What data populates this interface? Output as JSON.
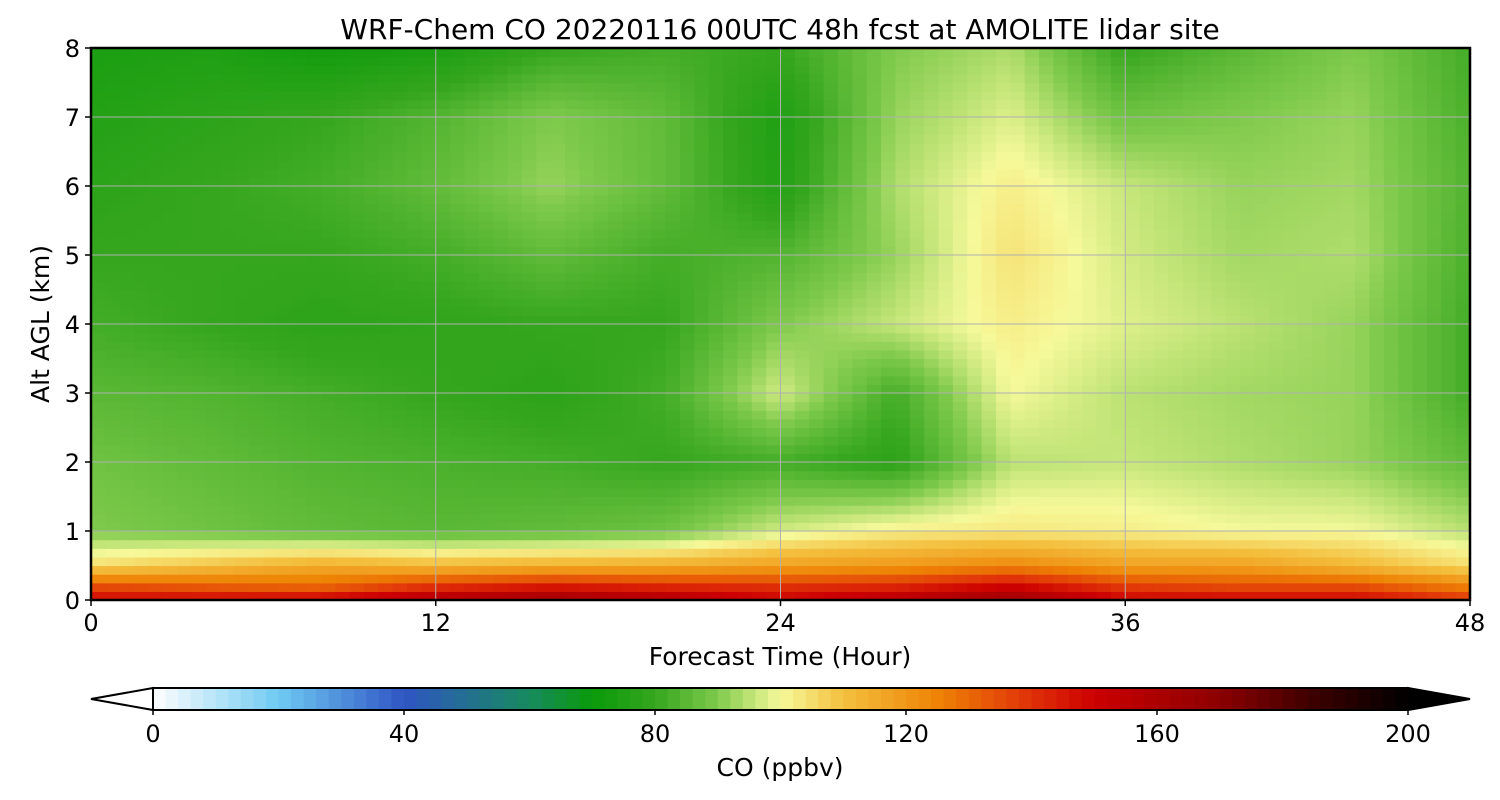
{
  "chart_data": {
    "type": "heatmap",
    "title": "WRF-Chem CO  20220116 00UTC 48h fcst at AMOLITE lidar site",
    "xlabel": "Forecast Time (Hour)",
    "ylabel": "Alt AGL (km)",
    "xlim": [
      0,
      48
    ],
    "ylim": [
      0,
      8
    ],
    "xticks": [
      0,
      12,
      24,
      36,
      48
    ],
    "yticks": [
      0,
      1,
      2,
      3,
      4,
      5,
      6,
      7,
      8
    ],
    "grid": true,
    "colorbar": {
      "label": "CO  (ppbv)",
      "range": [
        0,
        200
      ],
      "ticks": [
        0,
        40,
        80,
        120,
        160,
        200
      ],
      "extend": "both",
      "orientation": "horizontal",
      "placement": "bottom",
      "colors": {
        "0": "#ffffff",
        "20": "#6fcaf2",
        "40": "#2f55c4",
        "60": "#178a5e",
        "70": "#0a9a0a",
        "80": "#35a61e",
        "90": "#7fca4c",
        "100": "#f6f99a",
        "110": "#f4c03f",
        "125": "#ee8305",
        "140": "#e03008",
        "150": "#cc0000",
        "170": "#8c0000",
        "185": "#3c0000",
        "200": "#000000"
      }
    },
    "x_hours": [
      0,
      4,
      8,
      12,
      16,
      20,
      24,
      28,
      32,
      36,
      40,
      44,
      48
    ],
    "alt_km": [
      0,
      0.2,
      0.5,
      1,
      2,
      3,
      4,
      5,
      6,
      7,
      8
    ],
    "co_ppbv": [
      [
        150,
        150,
        152,
        160,
        165,
        160,
        150,
        158,
        165,
        150,
        150,
        150,
        140
      ],
      [
        135,
        132,
        130,
        140,
        145,
        142,
        140,
        142,
        150,
        138,
        135,
        135,
        125
      ],
      [
        105,
        110,
        115,
        112,
        114,
        115,
        118,
        120,
        124,
        118,
        118,
        112,
        105
      ],
      [
        90,
        88,
        86,
        85,
        86,
        88,
        97,
        102,
        103,
        102,
        100,
        100,
        95
      ],
      [
        88,
        86,
        84,
        83,
        82,
        80,
        82,
        78,
        95,
        96,
        94,
        92,
        86
      ],
      [
        85,
        84,
        82,
        80,
        78,
        82,
        97,
        82,
        100,
        95,
        93,
        92,
        82
      ],
      [
        82,
        80,
        78,
        79,
        80,
        80,
        90,
        96,
        102,
        98,
        95,
        92,
        82
      ],
      [
        80,
        80,
        80,
        82,
        86,
        82,
        84,
        92,
        104,
        97,
        93,
        94,
        83
      ],
      [
        78,
        80,
        82,
        86,
        92,
        86,
        76,
        94,
        102,
        96,
        92,
        93,
        84
      ],
      [
        76,
        78,
        80,
        84,
        90,
        86,
        75,
        92,
        98,
        88,
        90,
        92,
        83
      ],
      [
        74,
        75,
        72,
        74,
        80,
        82,
        80,
        90,
        94,
        80,
        85,
        90,
        82
      ]
    ]
  }
}
